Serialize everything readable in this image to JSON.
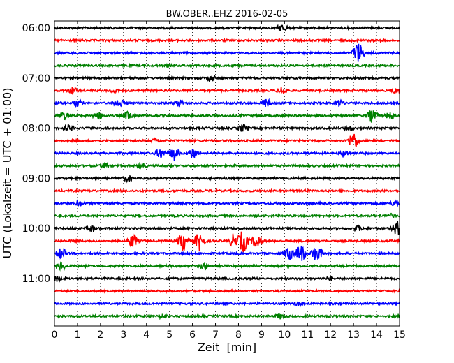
{
  "chart_data": {
    "type": "line",
    "title": "BW.OBER..EHZ 2016-02-05",
    "xlabel": "Zeit  [min]",
    "ylabel": "UTC (Lokalzeit = UTC + 01:00)",
    "xlim": [
      0,
      15
    ],
    "x_ticks": [
      "0",
      "1",
      "2",
      "3",
      "4",
      "5",
      "6",
      "7",
      "8",
      "9",
      "10",
      "11",
      "12",
      "13",
      "14",
      "15"
    ],
    "y_tick_labels": [
      "06:00",
      "07:00",
      "08:00",
      "09:00",
      "10:00",
      "11:00"
    ],
    "grid": true,
    "trace_colors": [
      "#000000",
      "#ff0000",
      "#0000ff",
      "#008000"
    ],
    "traces": [
      {
        "start": "06:00",
        "color": "#000000",
        "bursts": [
          {
            "t": 9.9,
            "amp": 7
          }
        ]
      },
      {
        "start": "06:15",
        "color": "#ff0000",
        "bursts": []
      },
      {
        "start": "06:30",
        "color": "#0000ff",
        "bursts": [
          {
            "t": 13.2,
            "amp": 17
          }
        ]
      },
      {
        "start": "06:45",
        "color": "#008000",
        "bursts": []
      },
      {
        "start": "07:00",
        "color": "#000000",
        "bursts": [
          {
            "t": 6.8,
            "amp": 6
          }
        ]
      },
      {
        "start": "07:15",
        "color": "#ff0000",
        "bursts": [
          {
            "t": 0.8,
            "amp": 6
          },
          {
            "t": 2.6,
            "amp": 5
          },
          {
            "t": 9.9,
            "amp": 7
          },
          {
            "t": 14.8,
            "amp": 5
          }
        ]
      },
      {
        "start": "07:30",
        "color": "#0000ff",
        "bursts": [
          {
            "t": 1.0,
            "amp": 6
          },
          {
            "t": 2.8,
            "amp": 8
          },
          {
            "t": 5.4,
            "amp": 6
          },
          {
            "t": 9.2,
            "amp": 7
          },
          {
            "t": 12.4,
            "amp": 6
          }
        ]
      },
      {
        "start": "07:45",
        "color": "#008000",
        "bursts": [
          {
            "t": 0.4,
            "amp": 8
          },
          {
            "t": 1.9,
            "amp": 7
          },
          {
            "t": 3.2,
            "amp": 8
          },
          {
            "t": 13.8,
            "amp": 11
          },
          {
            "t": 14.6,
            "amp": 7
          }
        ]
      },
      {
        "start": "08:00",
        "color": "#000000",
        "bursts": [
          {
            "t": 0.6,
            "amp": 6
          },
          {
            "t": 8.2,
            "amp": 7
          },
          {
            "t": 12.8,
            "amp": 5
          }
        ]
      },
      {
        "start": "08:15",
        "color": "#ff0000",
        "bursts": [
          {
            "t": 13.0,
            "amp": 14
          },
          {
            "t": 4.4,
            "amp": 5
          }
        ]
      },
      {
        "start": "08:30",
        "color": "#0000ff",
        "bursts": [
          {
            "t": 4.6,
            "amp": 9
          },
          {
            "t": 5.2,
            "amp": 11
          },
          {
            "t": 6.0,
            "amp": 9
          },
          {
            "t": 12.6,
            "amp": 6
          }
        ]
      },
      {
        "start": "08:45",
        "color": "#008000",
        "bursts": [
          {
            "t": 2.2,
            "amp": 6
          },
          {
            "t": 3.8,
            "amp": 5
          }
        ]
      },
      {
        "start": "09:00",
        "color": "#000000",
        "bursts": [
          {
            "t": 3.2,
            "amp": 6
          }
        ]
      },
      {
        "start": "09:15",
        "color": "#ff0000",
        "bursts": []
      },
      {
        "start": "09:30",
        "color": "#0000ff",
        "bursts": [
          {
            "t": 1.1,
            "amp": 5
          },
          {
            "t": 14.8,
            "amp": 5
          }
        ]
      },
      {
        "start": "09:45",
        "color": "#008000",
        "bursts": [
          {
            "t": 14.6,
            "amp": 4
          }
        ]
      },
      {
        "start": "10:00",
        "color": "#000000",
        "bursts": [
          {
            "t": 1.6,
            "amp": 6
          },
          {
            "t": 13.2,
            "amp": 5
          },
          {
            "t": 14.9,
            "amp": 12
          }
        ]
      },
      {
        "start": "10:15",
        "color": "#ff0000",
        "bursts": [
          {
            "t": 3.4,
            "amp": 11
          },
          {
            "t": 5.6,
            "amp": 16
          },
          {
            "t": 6.3,
            "amp": 14
          },
          {
            "t": 7.8,
            "amp": 12
          },
          {
            "t": 8.2,
            "amp": 18
          },
          {
            "t": 8.8,
            "amp": 12
          }
        ]
      },
      {
        "start": "10:30",
        "color": "#0000ff",
        "bursts": [
          {
            "t": 0.3,
            "amp": 10
          },
          {
            "t": 10.2,
            "amp": 11
          },
          {
            "t": 10.7,
            "amp": 15
          },
          {
            "t": 11.4,
            "amp": 14
          }
        ]
      },
      {
        "start": "10:45",
        "color": "#008000",
        "bursts": [
          {
            "t": 0.3,
            "amp": 7
          },
          {
            "t": 6.5,
            "amp": 6
          }
        ]
      },
      {
        "start": "11:00",
        "color": "#000000",
        "bursts": [
          {
            "t": 0.1,
            "amp": 5
          },
          {
            "t": 12.0,
            "amp": 4
          }
        ]
      },
      {
        "start": "11:15",
        "color": "#ff0000",
        "bursts": []
      },
      {
        "start": "11:30",
        "color": "#0000ff",
        "bursts": [
          {
            "t": 10.6,
            "amp": 4
          }
        ]
      },
      {
        "start": "11:45",
        "color": "#008000",
        "bursts": [
          {
            "t": 4.7,
            "amp": 5
          },
          {
            "t": 9.8,
            "amp": 5
          }
        ]
      }
    ]
  }
}
